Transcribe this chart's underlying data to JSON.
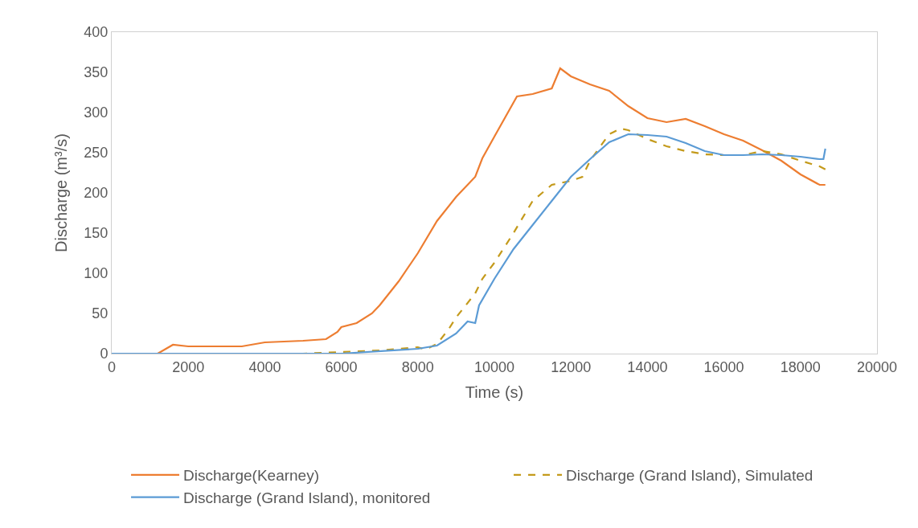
{
  "chart_data": {
    "type": "line",
    "xlabel": "Time (s)",
    "ylabel": "Discharge (m³/s)",
    "xlim": [
      0,
      20000
    ],
    "xticks": [
      0,
      2000,
      4000,
      6000,
      8000,
      10000,
      12000,
      14000,
      16000,
      18000,
      20000
    ],
    "ylim": [
      0,
      400
    ],
    "yticks": [
      0,
      50,
      100,
      150,
      200,
      250,
      300,
      350,
      400
    ],
    "grid": false,
    "legend": "bottom",
    "marker": "none",
    "series": [
      {
        "name": "Discharge(Kearney)",
        "color": "#ed7d31",
        "line_style": "solid",
        "x": [
          0,
          1200,
          1600,
          2000,
          3400,
          4000,
          5000,
          5600,
          5900,
          6000,
          6400,
          6800,
          7000,
          7500,
          8000,
          8500,
          9000,
          9500,
          9685,
          10000,
          10590,
          11000,
          11500,
          11720,
          12000,
          12500,
          13000,
          13500,
          14000,
          14500,
          15000,
          15500,
          16000,
          16500,
          17000,
          17500,
          18000,
          18500,
          18650
        ],
        "values": [
          0,
          0,
          11,
          9,
          9,
          14,
          16,
          18,
          27,
          33,
          38,
          50,
          60,
          90,
          125,
          165,
          195,
          220,
          243,
          270,
          320,
          323,
          330,
          355,
          345,
          335,
          327,
          308,
          293,
          288,
          292,
          283,
          273,
          265,
          253,
          240,
          223,
          210,
          210
        ]
      },
      {
        "name": "Discharge (Grand Island), Simulated",
        "color": "#c49a1b",
        "line_style": "dashed",
        "x": [
          0,
          5000,
          6000,
          7000,
          8000,
          8200,
          8500,
          8800,
          9000,
          9500,
          9685,
          10000,
          10500,
          11000,
          11500,
          12000,
          12300,
          12500,
          13000,
          13300,
          13500,
          14000,
          14500,
          15000,
          15500,
          16000,
          16500,
          17000,
          17500,
          18000,
          18500,
          18700
        ],
        "values": [
          0,
          0,
          2,
          4,
          8,
          5,
          12,
          30,
          45,
          75,
          93,
          113,
          150,
          190,
          210,
          215,
          220,
          240,
          273,
          280,
          278,
          267,
          258,
          252,
          248,
          247,
          247,
          252,
          248,
          240,
          233,
          228
        ]
      },
      {
        "name": "Discharge (Grand Island), monitored",
        "color": "#5b9bd5",
        "line_style": "solid",
        "x": [
          0,
          6000,
          8000,
          8500,
          9000,
          9300,
          9500,
          9600,
          10000,
          10500,
          11000,
          11500,
          12000,
          12500,
          13000,
          13500,
          14000,
          14500,
          15000,
          15500,
          16000,
          16500,
          17000,
          17500,
          18000,
          18500,
          18600,
          18650
        ],
        "values": [
          0,
          0,
          6,
          10,
          25,
          40,
          38,
          60,
          93,
          130,
          160,
          190,
          220,
          242,
          263,
          273,
          272,
          270,
          262,
          252,
          247,
          247,
          248,
          247,
          245,
          242,
          242,
          255
        ]
      }
    ]
  }
}
